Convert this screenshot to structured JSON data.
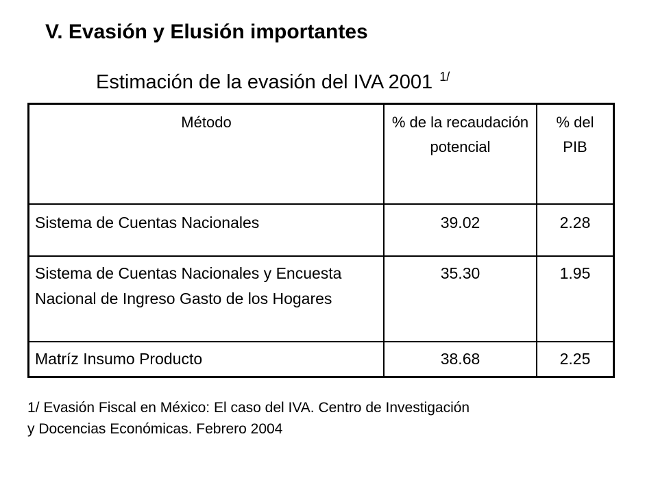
{
  "slide": {
    "heading": "V. Evasión y Elusión importantes",
    "subtitle": "Estimación de la evasión del IVA 2001",
    "subtitle_ref": "1/"
  },
  "table": {
    "headers": {
      "method": "Método",
      "pct_potential": "% de la recaudación potencial",
      "pct_gdp": "% del PIB"
    },
    "rows": [
      {
        "method": "Sistema de Cuentas Nacionales",
        "pct_potential": "39.02",
        "pct_gdp": "2.28"
      },
      {
        "method": "Sistema de Cuentas Nacionales y Encuesta Nacional de Ingreso Gasto de los Hogares",
        "pct_potential": "35.30",
        "pct_gdp": "1.95"
      },
      {
        "method": "Matríz Insumo Producto",
        "pct_potential": "38.68",
        "pct_gdp": "2.25"
      }
    ]
  },
  "footnote": {
    "line1": "1/ Evasión Fiscal en México: El caso del IVA. Centro de Investigación",
    "line2": "y Docencias Económicas. Febrero 2004"
  }
}
